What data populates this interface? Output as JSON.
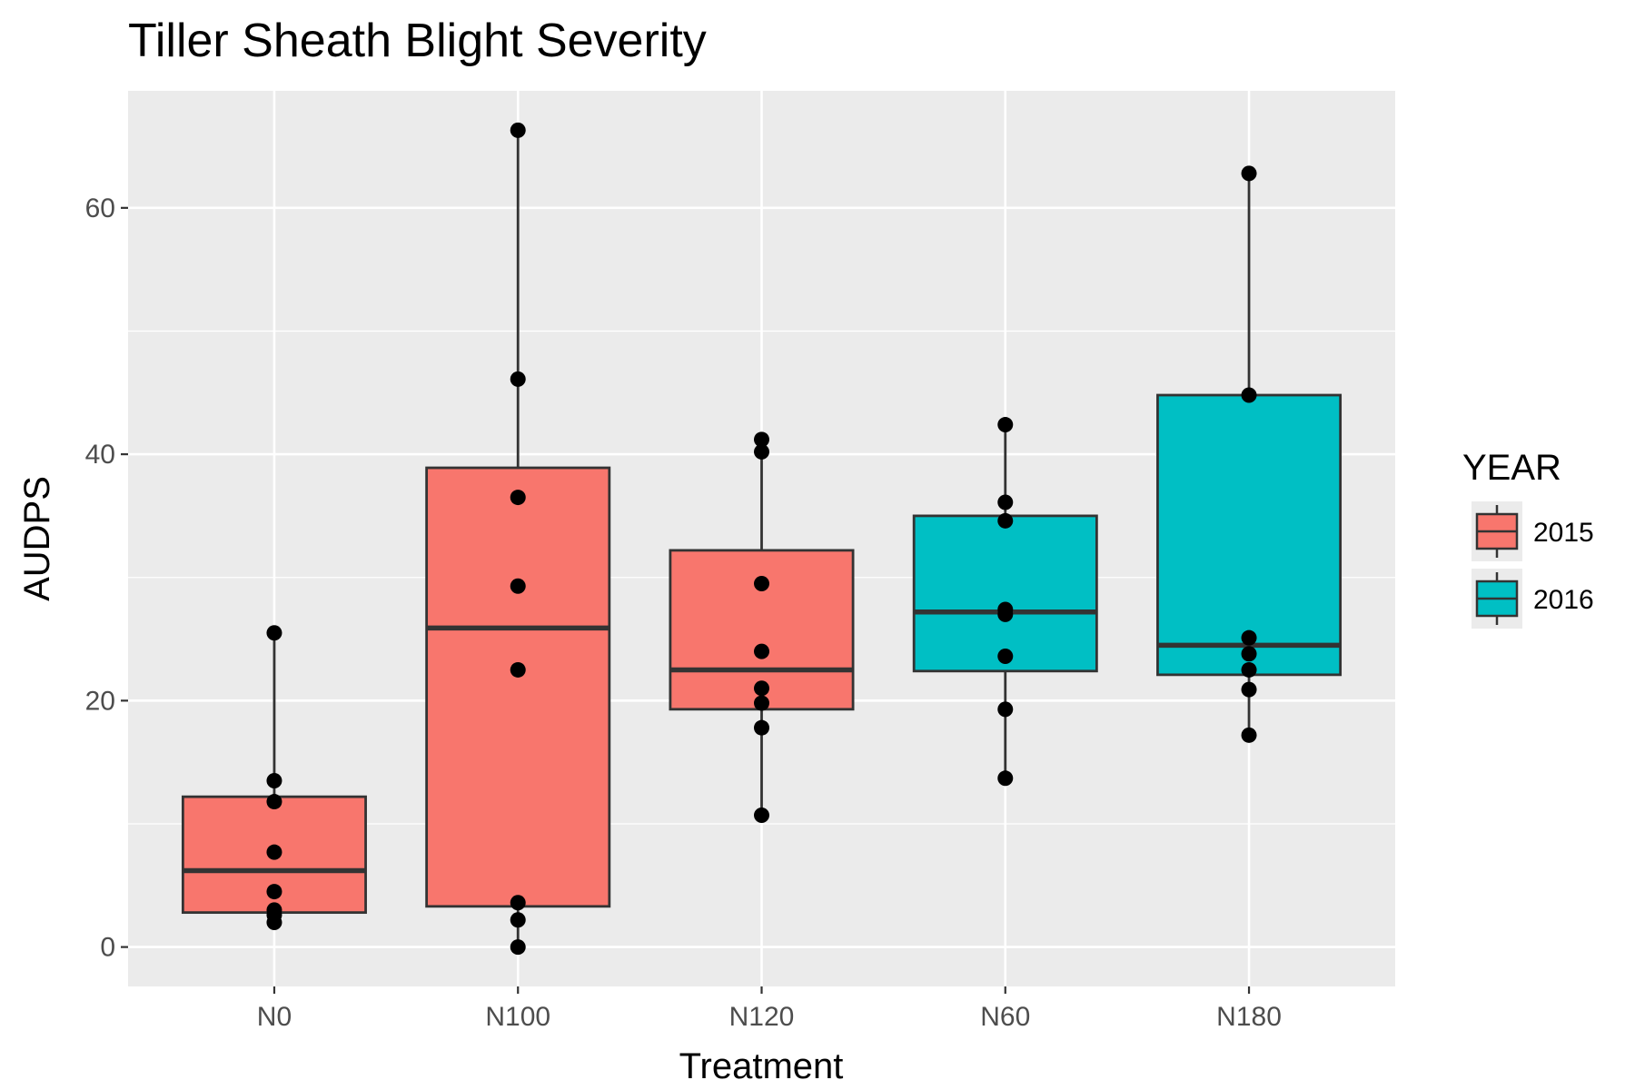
{
  "chart_data": {
    "type": "boxplot",
    "title": "Tiller Sheath Blight Severity",
    "xlabel": "Treatment",
    "ylabel": "AUDPS",
    "ylim": [
      -3.2,
      69.5
    ],
    "yticks": [
      0,
      20,
      40,
      60
    ],
    "grid": true,
    "legend": {
      "title": "YEAR",
      "position": "right",
      "entries": [
        "2015",
        "2016"
      ]
    },
    "categories": [
      "N0",
      "N100",
      "N120",
      "N60",
      "N180"
    ],
    "series": [
      {
        "name": "2015",
        "color": "#F8766D"
      },
      {
        "name": "2016",
        "color": "#00BFC4"
      }
    ],
    "boxes": [
      {
        "category": "N0",
        "year": "2015",
        "min": 2.0,
        "q1": 2.8,
        "median": 6.2,
        "q3": 12.2,
        "max": 25.5
      },
      {
        "category": "N100",
        "year": "2015",
        "min": 0.0,
        "q1": 3.3,
        "median": 25.9,
        "q3": 38.9,
        "max": 66.3
      },
      {
        "category": "N120",
        "year": "2015",
        "min": 10.7,
        "q1": 19.3,
        "median": 22.5,
        "q3": 32.2,
        "max": 41.2
      },
      {
        "category": "N60",
        "year": "2016",
        "min": 13.7,
        "q1": 22.4,
        "median": 27.2,
        "q3": 35.0,
        "max": 42.4
      },
      {
        "category": "N180",
        "year": "2016",
        "min": 17.2,
        "q1": 22.1,
        "median": 24.5,
        "q3": 44.8,
        "max": 62.8
      }
    ],
    "points": {
      "N0": [
        25.5,
        13.5,
        11.8,
        7.7,
        4.5,
        3.0,
        2.6,
        2.0
      ],
      "N100": [
        66.3,
        46.1,
        36.5,
        29.3,
        22.5,
        3.6,
        2.2,
        0.0
      ],
      "N120": [
        41.2,
        40.2,
        29.5,
        24.0,
        21.0,
        19.8,
        17.8,
        10.7
      ],
      "N60": [
        42.4,
        36.1,
        34.6,
        27.4,
        27.0,
        23.6,
        19.3,
        13.7
      ],
      "N180": [
        62.8,
        44.8,
        25.1,
        23.8,
        22.5,
        20.9,
        17.2
      ]
    }
  }
}
